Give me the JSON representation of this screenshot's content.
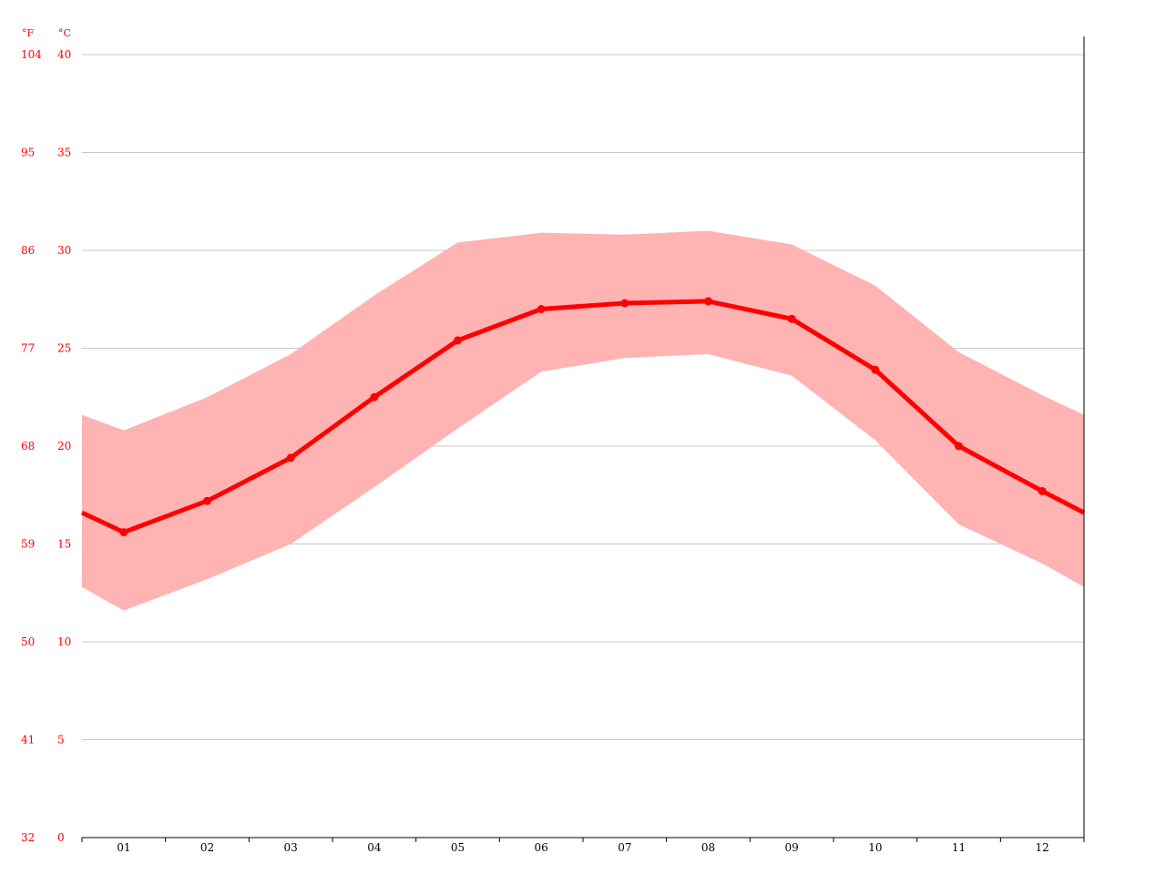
{
  "chart_data": {
    "type": "line",
    "unit_labels": {
      "fahrenheit": "°F",
      "celsius": "°C"
    },
    "categories": [
      "01",
      "02",
      "03",
      "04",
      "05",
      "06",
      "07",
      "08",
      "09",
      "10",
      "11",
      "12"
    ],
    "series": [
      {
        "values": [
          15.6,
          17.2,
          19.4,
          22.5,
          25.4,
          27.0,
          27.3,
          27.4,
          26.5,
          23.9,
          20.0,
          17.7
        ]
      }
    ],
    "band": {
      "upper": [
        20.8,
        22.5,
        24.7,
        27.7,
        30.4,
        30.9,
        30.8,
        31.0,
        30.3,
        28.2,
        24.8,
        22.6
      ],
      "lower": [
        11.6,
        13.2,
        15.0,
        17.9,
        20.9,
        23.8,
        24.5,
        24.7,
        23.6,
        20.3,
        16.0,
        14.0
      ]
    },
    "edges": {
      "left": {
        "value": 16.6,
        "upper": 21.6,
        "lower": 12.8
      },
      "right": {
        "value": 16.6,
        "upper": 21.6,
        "lower": 12.8
      }
    },
    "y_ticks_celsius": [
      "0",
      "5",
      "10",
      "15",
      "20",
      "25",
      "30",
      "35",
      "40"
    ],
    "y_ticks_fahrenheit": [
      "32",
      "41",
      "50",
      "59",
      "68",
      "77",
      "86",
      "95",
      "104"
    ],
    "ylim": [
      0,
      40
    ],
    "grid": true,
    "colors": {
      "line": "#ff0000",
      "band": "#ffb3b3",
      "tick": "#ff0000",
      "grid": "#c8c8c8",
      "axis": "#000000"
    }
  }
}
